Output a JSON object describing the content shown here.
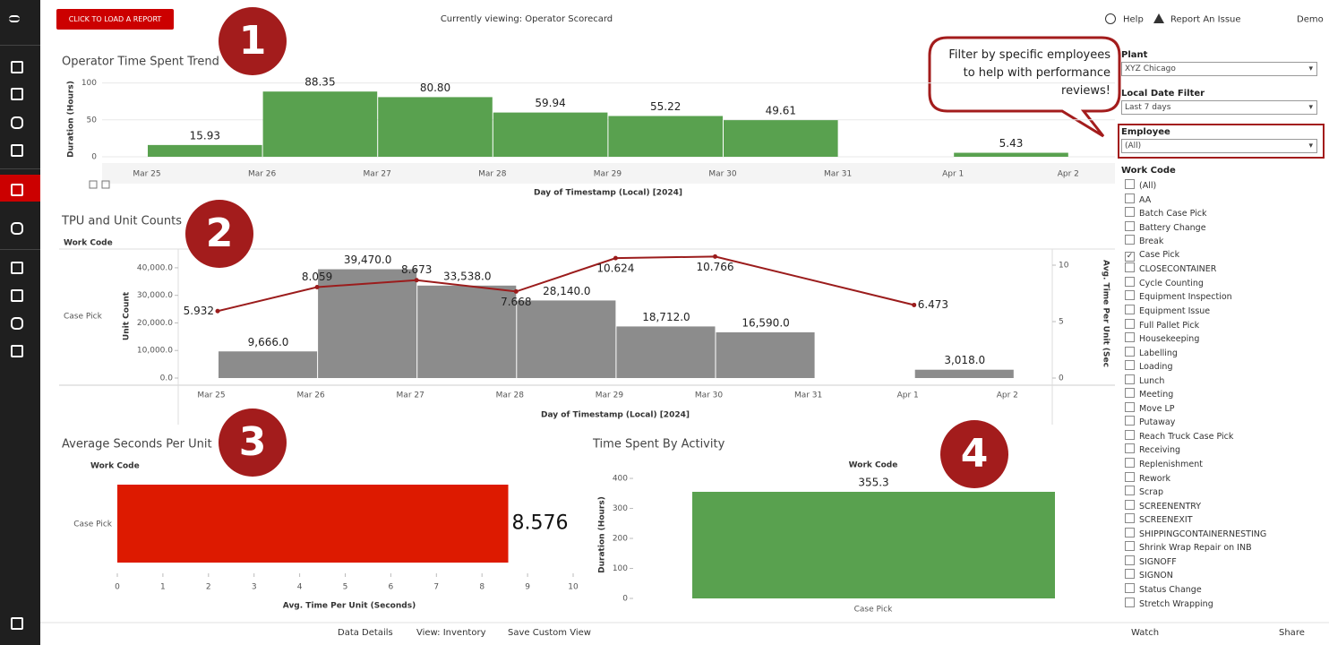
{
  "header": {
    "load_button": "CLICK TO LOAD A REPORT",
    "viewing": "Currently viewing: Operator Scorecard",
    "help": "Help",
    "report_issue": "Report An Issue",
    "user": "Demo"
  },
  "callouts": [
    "1",
    "2",
    "3",
    "4"
  ],
  "speech_bubble": "Filter by specific employees to help with performance reviews!",
  "filters": {
    "plant": {
      "label": "Plant",
      "value": "XYZ Chicago"
    },
    "date": {
      "label": "Local Date Filter",
      "value": "Last 7 days"
    },
    "employee": {
      "label": "Employee",
      "value": "(All)"
    },
    "work_code": {
      "label": "Work Code",
      "checked_item": 5,
      "items": [
        "(All)",
        "AA",
        "Batch Case Pick",
        "Battery Change",
        "Break",
        "Case Pick",
        "CLOSECONTAINER",
        "Cycle Counting",
        "Equipment Inspection",
        "Equipment Issue",
        "Full Pallet Pick",
        "Housekeeping",
        "Labelling",
        "Loading",
        "Lunch",
        "Meeting",
        "Move LP",
        "Putaway",
        "Reach Truck Case Pick",
        "Receiving",
        "Replenishment",
        "Rework",
        "Scrap",
        "SCREENENTRY",
        "SCREENEXIT",
        "SHIPPINGCONTAINERNESTING",
        "Shrink Wrap Repair on INB",
        "SIGNOFF",
        "SIGNON",
        "Status Change",
        "Stretch Wrapping"
      ]
    }
  },
  "toolbar": {
    "data_details": "Data Details",
    "view": "View: Inventory",
    "save_view": "Save Custom View",
    "watch": "Watch",
    "share": "Share"
  },
  "chart_data": [
    {
      "type": "bar",
      "title": "Operator Time Spent Trend",
      "y_label": "Duration (Hours)",
      "x_label": "Day of Timestamp (Local) [2024]",
      "xtick_labels": [
        "Mar 25",
        "Mar 26",
        "Mar 27",
        "Mar 28",
        "Mar 29",
        "Mar 30",
        "Mar 31",
        "Apr 1",
        "Apr 2"
      ],
      "values": [
        15.93,
        88.35,
        80.8,
        59.94,
        55.22,
        49.61,
        null,
        5.43
      ],
      "value_labels": [
        "15.93",
        "88.35",
        "80.80",
        "59.94",
        "55.22",
        "49.61",
        null,
        "5.43"
      ],
      "color": "#59a14f",
      "ylim": [
        0,
        108
      ],
      "yticks": [
        0,
        50,
        100
      ],
      "grid": true
    },
    {
      "type": "combo",
      "title": "TPU and Unit Counts",
      "header": "Work Code",
      "row_label": "Case Pick",
      "x_label": "Day of Timestamp (Local) [2024]",
      "y_label": "Unit Count",
      "y2_label": "Avg. Time Per Unit (Sec",
      "xtick_labels": [
        "Mar 25",
        "Mar 26",
        "Mar 27",
        "Mar 28",
        "Mar 29",
        "Mar 30",
        "Mar 31",
        "Apr 1",
        "Apr 2"
      ],
      "series": [
        {
          "name": "Unit Count",
          "color": "#8c8c8c",
          "values": [
            9666,
            39470,
            33538,
            28140,
            18712,
            16590,
            null,
            3018
          ],
          "value_labels": [
            "9,666.0",
            "39,470.0",
            "33,538.0",
            "28,140.0",
            "18,712.0",
            "16,590.0",
            null,
            "3,018.0"
          ]
        },
        {
          "name": "Avg. Time Per Unit",
          "color": "#9b1c1c",
          "axis": "y2",
          "x": [
            "Mar 25",
            "Mar 26",
            "Mar 27",
            "Mar 28",
            "Mar 29",
            "Mar 30",
            "Apr 1"
          ],
          "values": [
            5.932,
            8.059,
            8.673,
            7.668,
            10.624,
            10.766,
            6.473
          ]
        }
      ],
      "ylim": [
        0,
        46800
      ],
      "yticks": [
        {
          "value": 0,
          "label": "0.0"
        },
        {
          "value": 10000,
          "label": "10,000.0"
        },
        {
          "value": 20000,
          "label": "20,000.0"
        },
        {
          "value": 30000,
          "label": "30,000.0"
        },
        {
          "value": 40000,
          "label": "40,000.0"
        }
      ],
      "y2lim": [
        0,
        11.43
      ],
      "y2ticks": [
        0,
        5,
        10
      ],
      "grid": false
    },
    {
      "type": "bar",
      "orientation": "horizontal",
      "title": "Average Seconds Per Unit",
      "header": "Work Code",
      "categories": [
        "Case Pick"
      ],
      "values": [
        8.576
      ],
      "color": "#dd1a00",
      "x_label": "Avg. Time Per Unit (Seconds)",
      "xlim": [
        0,
        10
      ],
      "xticks": [
        0,
        1,
        2,
        3,
        4,
        5,
        6,
        7,
        8,
        9,
        10
      ]
    },
    {
      "type": "bar",
      "title": "Time Spent By Activity",
      "header": "Work Code",
      "categories": [
        "Case Pick"
      ],
      "values": [
        355.3
      ],
      "color": "#59a14f",
      "y_label": "Duration (Hours)",
      "ylim": [
        0,
        427
      ],
      "yticks": [
        0,
        100,
        200,
        300,
        400
      ],
      "grid": false
    }
  ]
}
